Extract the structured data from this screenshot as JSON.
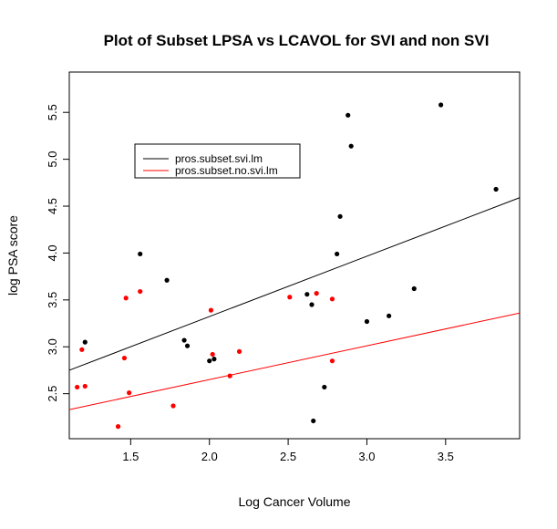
{
  "chart_data": {
    "type": "scatter",
    "title": "Plot of Subset LPSA vs LCAVOL for SVI and non SVI",
    "xlabel": "Log Cancer Volume",
    "ylabel": "log PSA score",
    "xlim": [
      1.11,
      3.97
    ],
    "ylim": [
      2.02,
      5.93
    ],
    "xticks": [
      1.5,
      2.0,
      2.5,
      3.0,
      3.5
    ],
    "yticks": [
      2.5,
      3.0,
      3.5,
      4.0,
      4.5,
      5.0,
      5.5
    ],
    "grid": false,
    "legend_position": "upper-left",
    "series": [
      {
        "name": "pros.subset.svi.lm",
        "color": "#000000",
        "points": [
          [
            1.21,
            3.05
          ],
          [
            1.56,
            3.99
          ],
          [
            1.73,
            3.71
          ],
          [
            1.84,
            3.07
          ],
          [
            1.86,
            3.01
          ],
          [
            2.0,
            2.85
          ],
          [
            2.03,
            2.87
          ],
          [
            2.62,
            3.56
          ],
          [
            2.65,
            3.45
          ],
          [
            2.66,
            2.21
          ],
          [
            2.73,
            2.57
          ],
          [
            2.81,
            3.99
          ],
          [
            2.83,
            4.39
          ],
          [
            2.88,
            5.47
          ],
          [
            2.9,
            5.14
          ],
          [
            3.0,
            3.27
          ],
          [
            3.14,
            3.33
          ],
          [
            3.3,
            3.62
          ],
          [
            3.47,
            5.58
          ],
          [
            3.82,
            4.68
          ]
        ],
        "fit_line": {
          "x": [
            1.11,
            3.97
          ],
          "y": [
            2.75,
            4.59
          ]
        }
      },
      {
        "name": "pros.subset.no.svi.lm",
        "color": "#ff0000",
        "points": [
          [
            1.16,
            2.57
          ],
          [
            1.19,
            2.97
          ],
          [
            1.21,
            2.58
          ],
          [
            1.42,
            2.15
          ],
          [
            1.46,
            2.88
          ],
          [
            1.47,
            3.52
          ],
          [
            1.49,
            2.51
          ],
          [
            1.56,
            3.59
          ],
          [
            1.77,
            2.37
          ],
          [
            2.01,
            3.39
          ],
          [
            2.02,
            2.92
          ],
          [
            2.13,
            2.69
          ],
          [
            2.19,
            2.95
          ],
          [
            2.51,
            3.53
          ],
          [
            2.68,
            3.57
          ],
          [
            2.78,
            3.51
          ],
          [
            2.78,
            2.85
          ]
        ],
        "fit_line": {
          "x": [
            1.11,
            3.97
          ],
          "y": [
            2.33,
            3.36
          ]
        }
      }
    ]
  }
}
